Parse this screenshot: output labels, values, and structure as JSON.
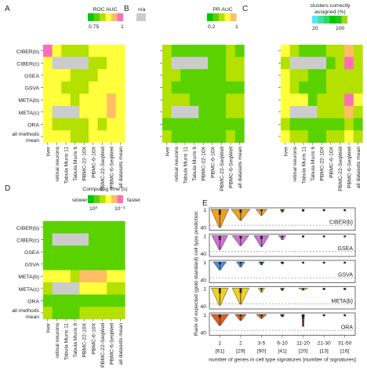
{
  "colors": {
    "scale": [
      "#00c800",
      "#5ad200",
      "#b4e100",
      "#ffff3c",
      "#ffbe64",
      "#ff6eb4"
    ],
    "na": "#cccccc",
    "violin": [
      "#f0a020",
      "#d070d8",
      "#4a90d8",
      "#f0d020",
      "#e06020"
    ]
  },
  "row_labels": [
    "CIBER(b)",
    "CIBER(c)",
    "GSEA",
    "GSVA",
    "META(b)",
    "META(c)",
    "ORA",
    "all methods mean"
  ],
  "col_labels": [
    "liver",
    "retinal neurons",
    "Tabula Muris 11",
    "Tabula Muris 6",
    "PBMC-22-10X",
    "PBMC-6-10X",
    "PBMC-22-SeqWell",
    "PBMC-6-SeqWell",
    "all datasets mean"
  ],
  "chart_data": [
    {
      "panel": "A",
      "type": "heatmap",
      "legend_title": "ROC AUC",
      "legend_ticks": [
        "0.75",
        "1"
      ],
      "na_label": "n/a",
      "scale": "low=green, high=pink",
      "columns": [
        "liver",
        "retinal neurons",
        "Tabula Muris 11",
        "Tabula Muris 6",
        "PBMC-22-10X",
        "PBMC-6-10X",
        "PBMC-22-SeqWell",
        "PBMC-6-SeqWell",
        "all datasets mean"
      ],
      "rows": [
        "CIBER(b)",
        "CIBER(c)",
        "GSEA",
        "GSVA",
        "META(b)",
        "META(c)",
        "ORA",
        "all methods mean"
      ],
      "values": [
        [
          5,
          3,
          2,
          2,
          2,
          3,
          3,
          3,
          3
        ],
        [
          3,
          null,
          null,
          null,
          null,
          2,
          2,
          3,
          3
        ],
        [
          3,
          3,
          3,
          2,
          2,
          2,
          3,
          3,
          3
        ],
        [
          3,
          3,
          2,
          2,
          2,
          3,
          3,
          3,
          3
        ],
        [
          3,
          3,
          3,
          2,
          3,
          3,
          3,
          4,
          3
        ],
        [
          3,
          null,
          null,
          null,
          3,
          3,
          3,
          4,
          3
        ],
        [
          3,
          2,
          2,
          2,
          2,
          3,
          2,
          3,
          3
        ],
        [
          3,
          3,
          3,
          2,
          2,
          3,
          3,
          3,
          3
        ]
      ]
    },
    {
      "panel": "B",
      "type": "heatmap",
      "legend_title": "PR AUC",
      "legend_ticks": [
        "0.2",
        "1"
      ],
      "columns": [
        "liver",
        "retinal neurons",
        "Tabula Muris 11",
        "Tabula Muris 6",
        "PBMC-22-10X",
        "PBMC-6-10X",
        "PBMC-22-SeqWell",
        "PBMC-6-SeqWell",
        "all datasets mean"
      ],
      "rows": [
        "CIBER(b)",
        "CIBER(c)",
        "GSEA",
        "GSVA",
        "META(b)",
        "META(c)",
        "ORA",
        "all methods mean"
      ],
      "values": [
        [
          2,
          1,
          1,
          1,
          1,
          1,
          1,
          2,
          1
        ],
        [
          2,
          null,
          null,
          null,
          null,
          1,
          1,
          2,
          2
        ],
        [
          2,
          2,
          1,
          1,
          1,
          1,
          1,
          2,
          2
        ],
        [
          2,
          1,
          1,
          1,
          1,
          1,
          1,
          1,
          1
        ],
        [
          2,
          2,
          2,
          1,
          1,
          1,
          1,
          2,
          2
        ],
        [
          2,
          null,
          null,
          null,
          1,
          1,
          1,
          2,
          2
        ],
        [
          1,
          1,
          1,
          1,
          1,
          1,
          1,
          1,
          1
        ],
        [
          2,
          1,
          1,
          1,
          1,
          1,
          1,
          2,
          1
        ]
      ]
    },
    {
      "panel": "C",
      "type": "heatmap",
      "legend_title": "clusters correctly assigned (%)",
      "legend_ticks": [
        "20",
        "100"
      ],
      "columns": [
        "liver",
        "retinal neurons",
        "Tabula Muris 11",
        "Tabula Muris 6",
        "PBMC-22-10X",
        "PBMC-6-10X",
        "PBMC-22-SeqWell",
        "PBMC-6-SeqWell",
        "all datasets mean"
      ],
      "rows": [
        "CIBER(b)",
        "CIBER(c)",
        "GSEA",
        "GSVA",
        "META(b)",
        "META(c)",
        "ORA",
        "all methods mean"
      ],
      "values": [
        [
          3,
          2,
          1,
          1,
          1,
          2,
          2,
          4,
          2
        ],
        [
          2,
          null,
          null,
          null,
          null,
          1,
          2,
          5,
          2
        ],
        [
          3,
          2,
          2,
          1,
          1,
          2,
          2,
          2,
          2
        ],
        [
          3,
          2,
          1,
          1,
          1,
          2,
          2,
          2,
          2
        ],
        [
          3,
          3,
          3,
          1,
          2,
          2,
          2,
          5,
          3
        ],
        [
          3,
          null,
          null,
          null,
          2,
          2,
          2,
          4,
          2
        ],
        [
          2,
          1,
          1,
          1,
          1,
          1,
          1,
          2,
          1
        ],
        [
          3,
          2,
          2,
          1,
          1,
          2,
          2,
          3,
          2
        ]
      ]
    },
    {
      "panel": "D",
      "type": "heatmap",
      "legend_title": "Computing time (s)",
      "legend_left": "slower",
      "legend_right": "faster",
      "legend_ticks": [
        "10³",
        "10⁻¹"
      ],
      "columns": [
        "liver",
        "retinal neurons",
        "Tabula Muris 11",
        "Tabula Muris 6",
        "PBMC-22-10X",
        "PBMC-6-10X",
        "PBMC-22-SeqWell",
        "PBMC-6-SeqWell",
        "all datasets mean"
      ],
      "rows": [
        "CIBER(b)",
        "CIBER(c)",
        "GSEA",
        "GSVA",
        "META(b)",
        "META(c)",
        "ORA",
        "all methods mean"
      ],
      "values": [
        [
          1,
          1,
          1,
          1,
          1,
          1,
          1,
          1,
          1
        ],
        [
          1,
          null,
          null,
          null,
          null,
          1,
          1,
          1,
          1
        ],
        [
          1,
          1,
          1,
          1,
          1,
          1,
          1,
          1,
          1
        ],
        [
          1,
          1,
          1,
          1,
          1,
          1,
          1,
          1,
          1
        ],
        [
          3,
          3,
          3,
          2,
          4,
          4,
          4,
          3,
          3
        ],
        [
          2,
          null,
          null,
          null,
          3,
          3,
          3,
          2,
          2
        ],
        [
          1,
          1,
          1,
          1,
          1,
          1,
          1,
          1,
          1
        ],
        [
          2,
          1,
          1,
          1,
          2,
          2,
          2,
          2,
          2
        ]
      ]
    },
    {
      "panel": "E",
      "type": "violin",
      "ylabel": "Rank of expected (gold standard) cell type prediction",
      "xlabel": "number of genes in cell type signatures [number of signatures]",
      "y_ticks": [
        "1",
        "40"
      ],
      "categories": [
        "1",
        "2",
        "3-5",
        "6-10",
        "11-20",
        "21-30",
        "31-50"
      ],
      "category_counts": [
        "[61]",
        "[29]",
        "[90]",
        "[41]",
        "[20]",
        "[13]",
        "[16]"
      ],
      "series": [
        {
          "name": "CIBER(b)",
          "spread": [
            0.95,
            1.0,
            0.6,
            0.25,
            0.15,
            0.12,
            0.1
          ],
          "depth": [
            0.9,
            0.55,
            0.3,
            0.15,
            0.1,
            0.08,
            0.08
          ]
        },
        {
          "name": "GSEA",
          "spread": [
            0.85,
            0.9,
            0.8,
            0.4,
            0.12,
            0.1,
            0.08
          ],
          "depth": [
            0.7,
            0.5,
            0.55,
            0.2,
            0.08,
            0.06,
            0.06
          ]
        },
        {
          "name": "GSVA",
          "spread": [
            0.7,
            0.45,
            0.3,
            0.2,
            0.1,
            0.08,
            0.08
          ],
          "depth": [
            0.4,
            0.25,
            0.15,
            0.1,
            0.06,
            0.06,
            0.06
          ]
        },
        {
          "name": "META(b)",
          "spread": [
            0.9,
            0.9,
            0.35,
            0.25,
            0.5,
            0.15,
            0.15
          ],
          "depth": [
            0.85,
            0.8,
            0.2,
            0.12,
            0.1,
            0.08,
            0.08
          ]
        },
        {
          "name": "ORA",
          "spread": [
            0.95,
            0.6,
            0.55,
            0.25,
            0.15,
            0.12,
            0.1
          ],
          "depth": [
            0.55,
            0.3,
            0.2,
            0.12,
            0.6,
            0.08,
            0.08
          ]
        }
      ]
    }
  ],
  "panel_letters": [
    "A",
    "B",
    "C",
    "D",
    "E"
  ]
}
